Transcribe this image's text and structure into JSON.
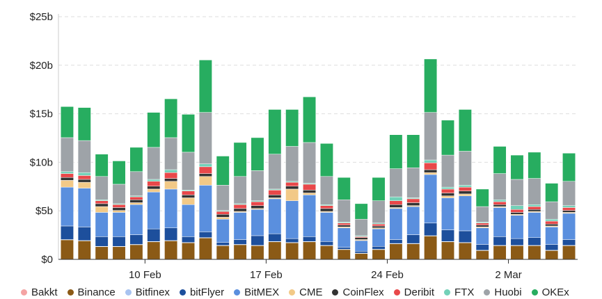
{
  "chart_data": {
    "type": "bar",
    "stacked": true,
    "title": "",
    "xlabel": "",
    "ylabel": "",
    "y_unit": "b",
    "ylim": [
      0,
      25
    ],
    "y_ticks": [
      {
        "value": 0,
        "label": "$0"
      },
      {
        "value": 5,
        "label": "$5b"
      },
      {
        "value": 10,
        "label": "$10b"
      },
      {
        "value": 15,
        "label": "$15b"
      },
      {
        "value": 20,
        "label": "$20b"
      },
      {
        "value": 25,
        "label": "$25b"
      }
    ],
    "x_ticks": [
      {
        "index": 5,
        "label": "10 Feb"
      },
      {
        "index": 12,
        "label": "17 Feb"
      },
      {
        "index": 19,
        "label": "24 Feb"
      },
      {
        "index": 26,
        "label": "2 Mar"
      }
    ],
    "grid": true,
    "legend_position": "bottom",
    "series": [
      {
        "name": "Bakkt",
        "color": "#f4a3a3",
        "values": [
          0.02,
          0.02,
          0.02,
          0.02,
          0.02,
          0.02,
          0.02,
          0.02,
          0.02,
          0.02,
          0.02,
          0.02,
          0.02,
          0.02,
          0.02,
          0.02,
          0.02,
          0.02,
          0.02,
          0.02,
          0.02,
          0.02,
          0.02,
          0.02,
          0.02,
          0.02,
          0.02,
          0.02,
          0.02,
          0.02
        ]
      },
      {
        "name": "Binance",
        "color": "#8b5a16",
        "values": [
          2.0,
          1.9,
          1.3,
          1.3,
          1.5,
          1.8,
          1.9,
          1.7,
          2.2,
          1.4,
          1.5,
          1.4,
          1.8,
          1.7,
          1.8,
          1.4,
          1.0,
          0.6,
          1.0,
          1.6,
          1.6,
          2.4,
          1.8,
          1.7,
          0.9,
          1.4,
          1.4,
          1.4,
          0.9,
          1.4
        ]
      },
      {
        "name": "Bitfinex",
        "color": "#a8c3f0",
        "values": [
          0.02,
          0.02,
          0.02,
          0.02,
          0.02,
          0.02,
          0.02,
          0.02,
          0.02,
          0.02,
          0.02,
          0.02,
          0.02,
          0.02,
          0.02,
          0.02,
          0.02,
          0.02,
          0.02,
          0.02,
          0.02,
          0.02,
          0.02,
          0.02,
          0.02,
          0.02,
          0.02,
          0.02,
          0.02,
          0.02
        ]
      },
      {
        "name": "bitFlyer",
        "color": "#1d4f9c",
        "values": [
          1.4,
          1.4,
          1.0,
          1.0,
          1.0,
          1.3,
          1.3,
          0.6,
          0.6,
          0.3,
          0.5,
          1.0,
          0.8,
          0.4,
          0.5,
          0.4,
          0.2,
          0.2,
          0.3,
          0.4,
          0.9,
          1.3,
          1.2,
          1.2,
          0.6,
          0.9,
          0.7,
          0.8,
          0.6,
          0.6
        ]
      },
      {
        "name": "BitMEX",
        "color": "#5a8fde",
        "values": [
          4.0,
          4.0,
          2.5,
          2.5,
          3.1,
          3.8,
          4.0,
          3.3,
          4.8,
          2.4,
          2.8,
          2.7,
          3.6,
          3.9,
          4.3,
          3.0,
          2.0,
          1.1,
          1.8,
          3.2,
          2.9,
          5.0,
          3.3,
          3.6,
          1.7,
          3.0,
          2.4,
          2.6,
          1.8,
          2.7
        ]
      },
      {
        "name": "CME",
        "color": "#f2c987",
        "values": [
          0.7,
          0.6,
          0.6,
          0.2,
          0.2,
          0.3,
          0.8,
          0.7,
          0.9,
          0.2,
          0.1,
          0.1,
          0.1,
          1.2,
          0.2,
          0.1,
          0.1,
          0.1,
          0.1,
          0.1,
          0.1,
          0.2,
          0.2,
          0.2,
          0.1,
          0.1,
          0.1,
          0.1,
          0.1,
          0.1
        ]
      },
      {
        "name": "CoinFlex",
        "color": "#333333",
        "values": [
          0.3,
          0.3,
          0.3,
          0.3,
          0.3,
          0.3,
          0.3,
          0.3,
          0.3,
          0.3,
          0.3,
          0.3,
          0.3,
          0.3,
          0.3,
          0.3,
          0.2,
          0.2,
          0.2,
          0.3,
          0.3,
          0.3,
          0.3,
          0.3,
          0.2,
          0.2,
          0.2,
          0.2,
          0.2,
          0.2
        ]
      },
      {
        "name": "Deribit",
        "color": "#e8484a",
        "values": [
          0.4,
          0.4,
          0.3,
          0.3,
          0.3,
          0.5,
          0.6,
          0.4,
          0.7,
          0.3,
          0.4,
          0.4,
          0.5,
          0.4,
          0.6,
          0.3,
          0.2,
          0.1,
          0.2,
          0.4,
          0.4,
          0.7,
          0.4,
          0.4,
          0.2,
          0.3,
          0.3,
          0.3,
          0.3,
          0.3
        ]
      },
      {
        "name": "FTX",
        "color": "#73d1b8",
        "values": [
          0.2,
          0.3,
          0.1,
          0.1,
          0.1,
          0.2,
          0.3,
          0.1,
          0.3,
          0.1,
          0.1,
          0.1,
          0.1,
          0.1,
          0.1,
          0.1,
          0.1,
          0.1,
          0.1,
          0.4,
          0.1,
          0.3,
          0.2,
          0.2,
          0.1,
          0.2,
          0.4,
          0.2,
          0.2,
          0.2
        ]
      },
      {
        "name": "Huobi",
        "color": "#9ea3a8",
        "values": [
          3.5,
          3.3,
          2.4,
          2.0,
          2.5,
          3.3,
          3.3,
          3.9,
          5.3,
          2.6,
          2.8,
          3.1,
          3.6,
          3.6,
          4.2,
          2.9,
          2.3,
          1.7,
          2.3,
          2.9,
          3.1,
          4.9,
          3.3,
          3.5,
          1.6,
          2.7,
          2.7,
          2.7,
          1.8,
          2.5
        ]
      },
      {
        "name": "OKEx",
        "color": "#27ad60",
        "values": [
          3.2,
          3.4,
          2.3,
          2.4,
          2.5,
          3.6,
          4.0,
          3.9,
          5.4,
          3.0,
          3.5,
          3.4,
          4.6,
          3.8,
          4.7,
          3.4,
          2.3,
          1.6,
          2.4,
          3.5,
          3.4,
          5.5,
          3.6,
          4.3,
          1.8,
          2.8,
          2.5,
          2.7,
          1.9,
          2.9
        ]
      }
    ]
  }
}
